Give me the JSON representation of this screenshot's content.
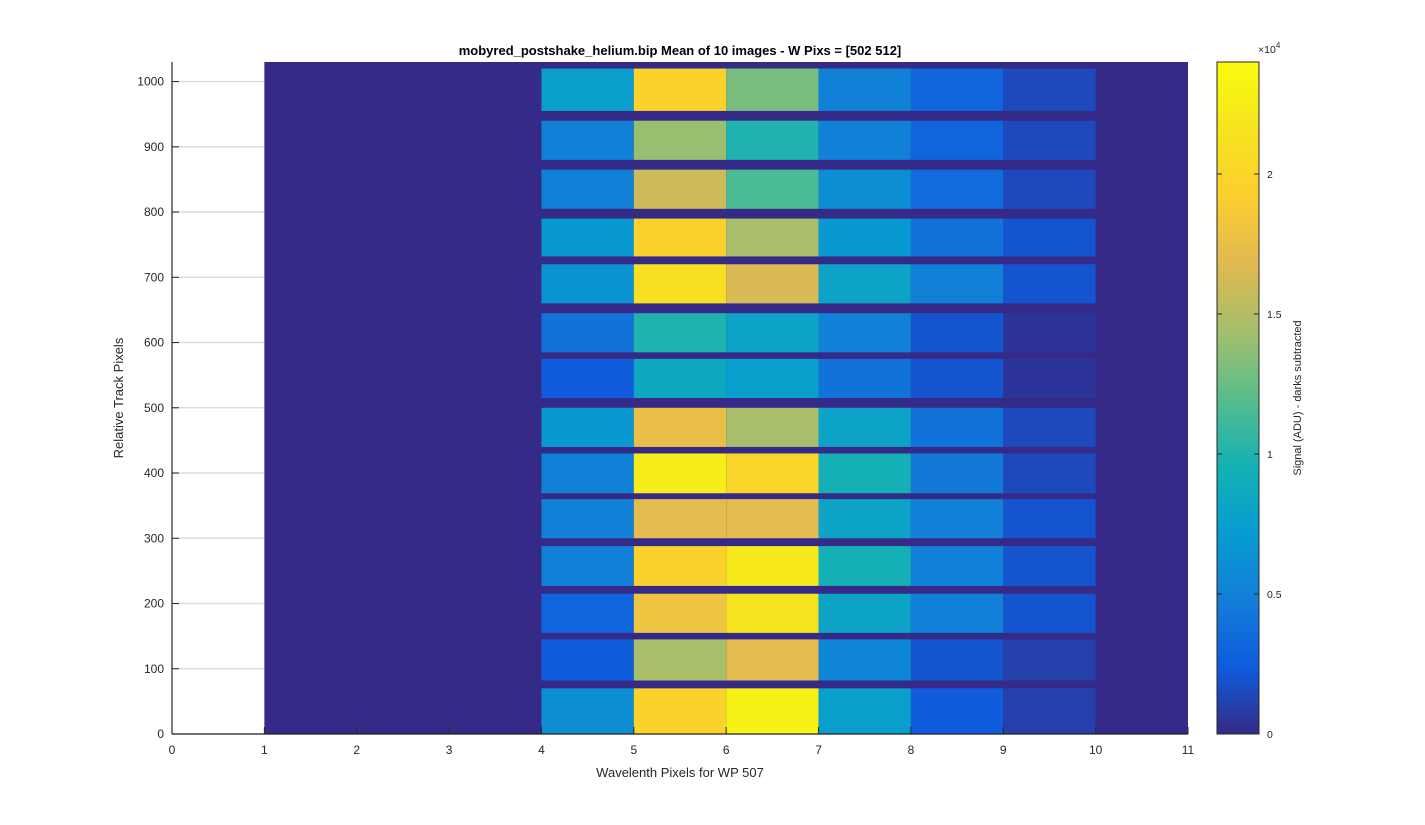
{
  "chart_data": {
    "type": "heatmap",
    "title": "mobyred_postshake_helium.bip  Mean of 10 images - W Pixs = [502  512]",
    "xlabel": "Wavelenth Pixels for WP 507",
    "ylabel": "Relative Track Pixels",
    "xlim": [
      0,
      11
    ],
    "ylim": [
      0,
      1030
    ],
    "x_ticks": [
      "0",
      "1",
      "2",
      "3",
      "4",
      "5",
      "6",
      "7",
      "8",
      "9",
      "10",
      "11"
    ],
    "y_ticks": [
      "0",
      "100",
      "200",
      "300",
      "400",
      "500",
      "600",
      "700",
      "800",
      "900",
      "1000"
    ],
    "y_grid": true,
    "data_x_range": [
      1,
      11
    ],
    "colormap": "parula",
    "colorbar": {
      "label": "Signal (ADU) - darks subtracted",
      "exponent_label": "×10",
      "exponent_power": "4",
      "range": [
        0,
        24000
      ],
      "ticks": [
        "0",
        "0.5",
        "1",
        "1.5",
        "2"
      ],
      "tick_values": [
        0,
        5000,
        10000,
        15000,
        20000
      ]
    },
    "column_centers": [
      4.5,
      5.5,
      6.5,
      7.5,
      8.5,
      9.5
    ],
    "stripes": [
      {
        "y_range": [
          0,
          70
        ],
        "values": [
          6000,
          19500,
          23000,
          7500,
          2500,
          1000
        ]
      },
      {
        "y_range": [
          82,
          145
        ],
        "values": [
          2500,
          14500,
          17000,
          5500,
          2000,
          1000
        ]
      },
      {
        "y_range": [
          155,
          215
        ],
        "values": [
          3000,
          18000,
          21500,
          8000,
          5000,
          2000
        ]
      },
      {
        "y_range": [
          227,
          288
        ],
        "values": [
          5000,
          19500,
          22000,
          9500,
          5000,
          2000
        ]
      },
      {
        "y_range": [
          300,
          360
        ],
        "values": [
          5000,
          17000,
          17000,
          8000,
          5000,
          2000
        ]
      },
      {
        "y_range": [
          369,
          430
        ],
        "values": [
          5000,
          22500,
          20000,
          9500,
          4500,
          1500
        ]
      },
      {
        "y_range": [
          440,
          500
        ],
        "values": [
          7000,
          17500,
          14500,
          8000,
          4000,
          1500
        ]
      },
      {
        "y_range": [
          515,
          575
        ],
        "values": [
          2500,
          8500,
          7500,
          4000,
          2000,
          500
        ]
      },
      {
        "y_range": [
          585,
          645
        ],
        "values": [
          4000,
          10000,
          8000,
          5000,
          2000,
          500
        ]
      },
      {
        "y_range": [
          660,
          720
        ],
        "values": [
          6500,
          21000,
          16500,
          8000,
          5000,
          2000
        ]
      },
      {
        "y_range": [
          732,
          790
        ],
        "values": [
          7000,
          19500,
          14500,
          7000,
          4000,
          2000
        ]
      },
      {
        "y_range": [
          805,
          865
        ],
        "values": [
          5000,
          16000,
          11500,
          6000,
          3500,
          1500
        ]
      },
      {
        "y_range": [
          880,
          940
        ],
        "values": [
          5000,
          14000,
          10000,
          5000,
          3000,
          1500
        ]
      },
      {
        "y_range": [
          955,
          1020
        ],
        "values": [
          7500,
          19500,
          13000,
          5000,
          3000,
          1500
        ]
      }
    ]
  }
}
